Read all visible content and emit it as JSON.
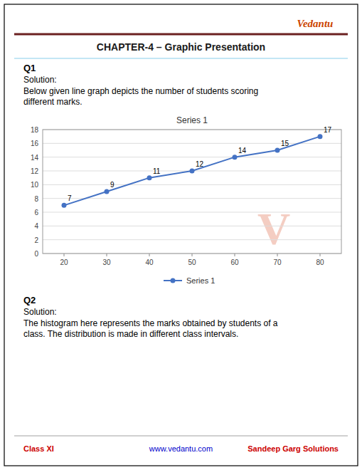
{
  "page": {
    "logo": "Vedantu",
    "heading": "CHAPTER-4 – Graphic Presentation",
    "q1_label": "Q1",
    "q1_solution": "Solution:",
    "q1_desc1": "Below given line graph depicts the number of students scoring",
    "q1_desc2": "different marks.",
    "watermark": "V",
    "q2_label": "Q2",
    "q2_solution": "Solution:",
    "q2_desc1": "The histogram here represents the marks obtained by students of a",
    "q2_desc2": "class. The distribution is made in different class intervals.",
    "footer_left": "Class XI",
    "footer_center": "www.vedantu.com",
    "footer_right": "Sandeep Garg Solutions"
  },
  "chart_data": {
    "type": "line",
    "title": "Series 1",
    "x": [
      20,
      30,
      40,
      50,
      60,
      70,
      80
    ],
    "series": [
      {
        "name": "Series 1",
        "color": "#4472C4",
        "marker": "circle",
        "values": [
          7,
          9,
          11,
          12,
          14,
          15,
          17
        ]
      }
    ],
    "xlim": [
      15,
      85
    ],
    "ylim": [
      0,
      18
    ],
    "xticks": [
      20,
      30,
      40,
      50,
      60,
      70,
      80
    ],
    "yticks": [
      0,
      2,
      4,
      6,
      8,
      10,
      12,
      14,
      16,
      18
    ],
    "grid": true,
    "legend": "bottom",
    "data_labels": true
  }
}
